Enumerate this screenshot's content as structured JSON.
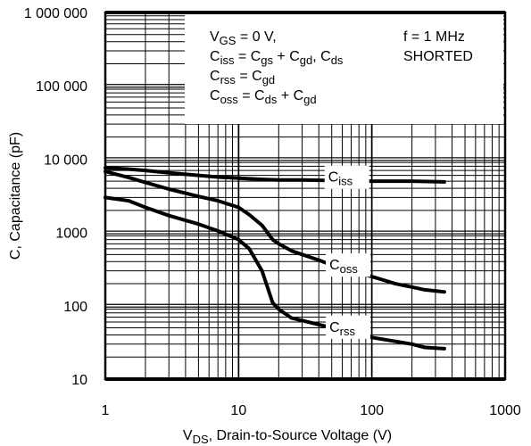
{
  "chart_data": {
    "type": "line",
    "title": "",
    "xlabel": {
      "main": "V",
      "sub": "DS",
      "rest": ", Drain-to-Source Voltage (V)"
    },
    "ylabel": "C, Capacitance (pF)",
    "x_scale": "log",
    "y_scale": "log",
    "xlim": [
      1,
      1000
    ],
    "ylim": [
      10,
      1000000
    ],
    "grid": true,
    "x_ticks": [
      {
        "value": 1,
        "label": "1"
      },
      {
        "value": 10,
        "label": "10"
      },
      {
        "value": 100,
        "label": "100"
      },
      {
        "value": 1000,
        "label": "1000"
      }
    ],
    "y_ticks": [
      {
        "value": 10,
        "label": "10"
      },
      {
        "value": 100,
        "label": "100"
      },
      {
        "value": 1000,
        "label": "1000"
      },
      {
        "value": 10000,
        "label": "10 000"
      },
      {
        "value": 100000,
        "label": "100 000"
      },
      {
        "value": 1000000,
        "label": "1 000 000"
      }
    ],
    "annotations": {
      "left": [
        [
          {
            "t": "V"
          },
          {
            "t": "GS",
            "sub": true
          },
          {
            "t": " = 0 V,"
          }
        ],
        [
          {
            "t": "C"
          },
          {
            "t": "iss",
            "sub": true
          },
          {
            "t": " = C"
          },
          {
            "t": "gs",
            "sub": true
          },
          {
            "t": " + C"
          },
          {
            "t": "gd",
            "sub": true
          },
          {
            "t": ", C"
          },
          {
            "t": "ds",
            "sub": true
          }
        ],
        [
          {
            "t": "C"
          },
          {
            "t": "rss",
            "sub": true
          },
          {
            "t": " = C"
          },
          {
            "t": "gd",
            "sub": true
          }
        ],
        [
          {
            "t": "C"
          },
          {
            "t": "oss",
            "sub": true
          },
          {
            "t": " = C"
          },
          {
            "t": "ds",
            "sub": true
          },
          {
            "t": " + C"
          },
          {
            "t": "gd",
            "sub": true
          }
        ]
      ],
      "right": [
        "f = 1 MHz",
        "SHORTED"
      ]
    },
    "series": [
      {
        "name": "Ciss",
        "label": {
          "main": "C",
          "sub": "iss"
        },
        "label_at": [
          47,
          5200
        ],
        "x": [
          1,
          1.5,
          2,
          3,
          5,
          7,
          10,
          15,
          20,
          30,
          50,
          100,
          200,
          350
        ],
        "y": [
          7600,
          7300,
          7000,
          6500,
          6000,
          5700,
          5500,
          5300,
          5200,
          5200,
          5100,
          5000,
          5000,
          4900
        ]
      },
      {
        "name": "Coss",
        "label": {
          "main": "C",
          "sub": "oss"
        },
        "label_at": [
          48,
          330
        ],
        "x": [
          1,
          1.5,
          2,
          3,
          5,
          7,
          10,
          12,
          15,
          18,
          20,
          25,
          30,
          40,
          50,
          70,
          100,
          150,
          200,
          250,
          350
        ],
        "y": [
          6800,
          5600,
          4800,
          3900,
          3100,
          2700,
          2200,
          1750,
          1250,
          800,
          700,
          560,
          500,
          420,
          360,
          300,
          250,
          200,
          180,
          165,
          155
        ]
      },
      {
        "name": "Crss",
        "label": {
          "main": "C",
          "sub": "rss"
        },
        "label_at": [
          48,
          47
        ],
        "x": [
          1,
          1.5,
          2,
          3,
          5,
          7,
          10,
          12,
          15,
          18,
          20,
          25,
          30,
          50,
          100,
          200,
          250,
          350
        ],
        "y": [
          3000,
          2700,
          2200,
          1700,
          1300,
          1050,
          800,
          600,
          300,
          110,
          90,
          68,
          63,
          50,
          37,
          30,
          27,
          26
        ]
      }
    ]
  }
}
